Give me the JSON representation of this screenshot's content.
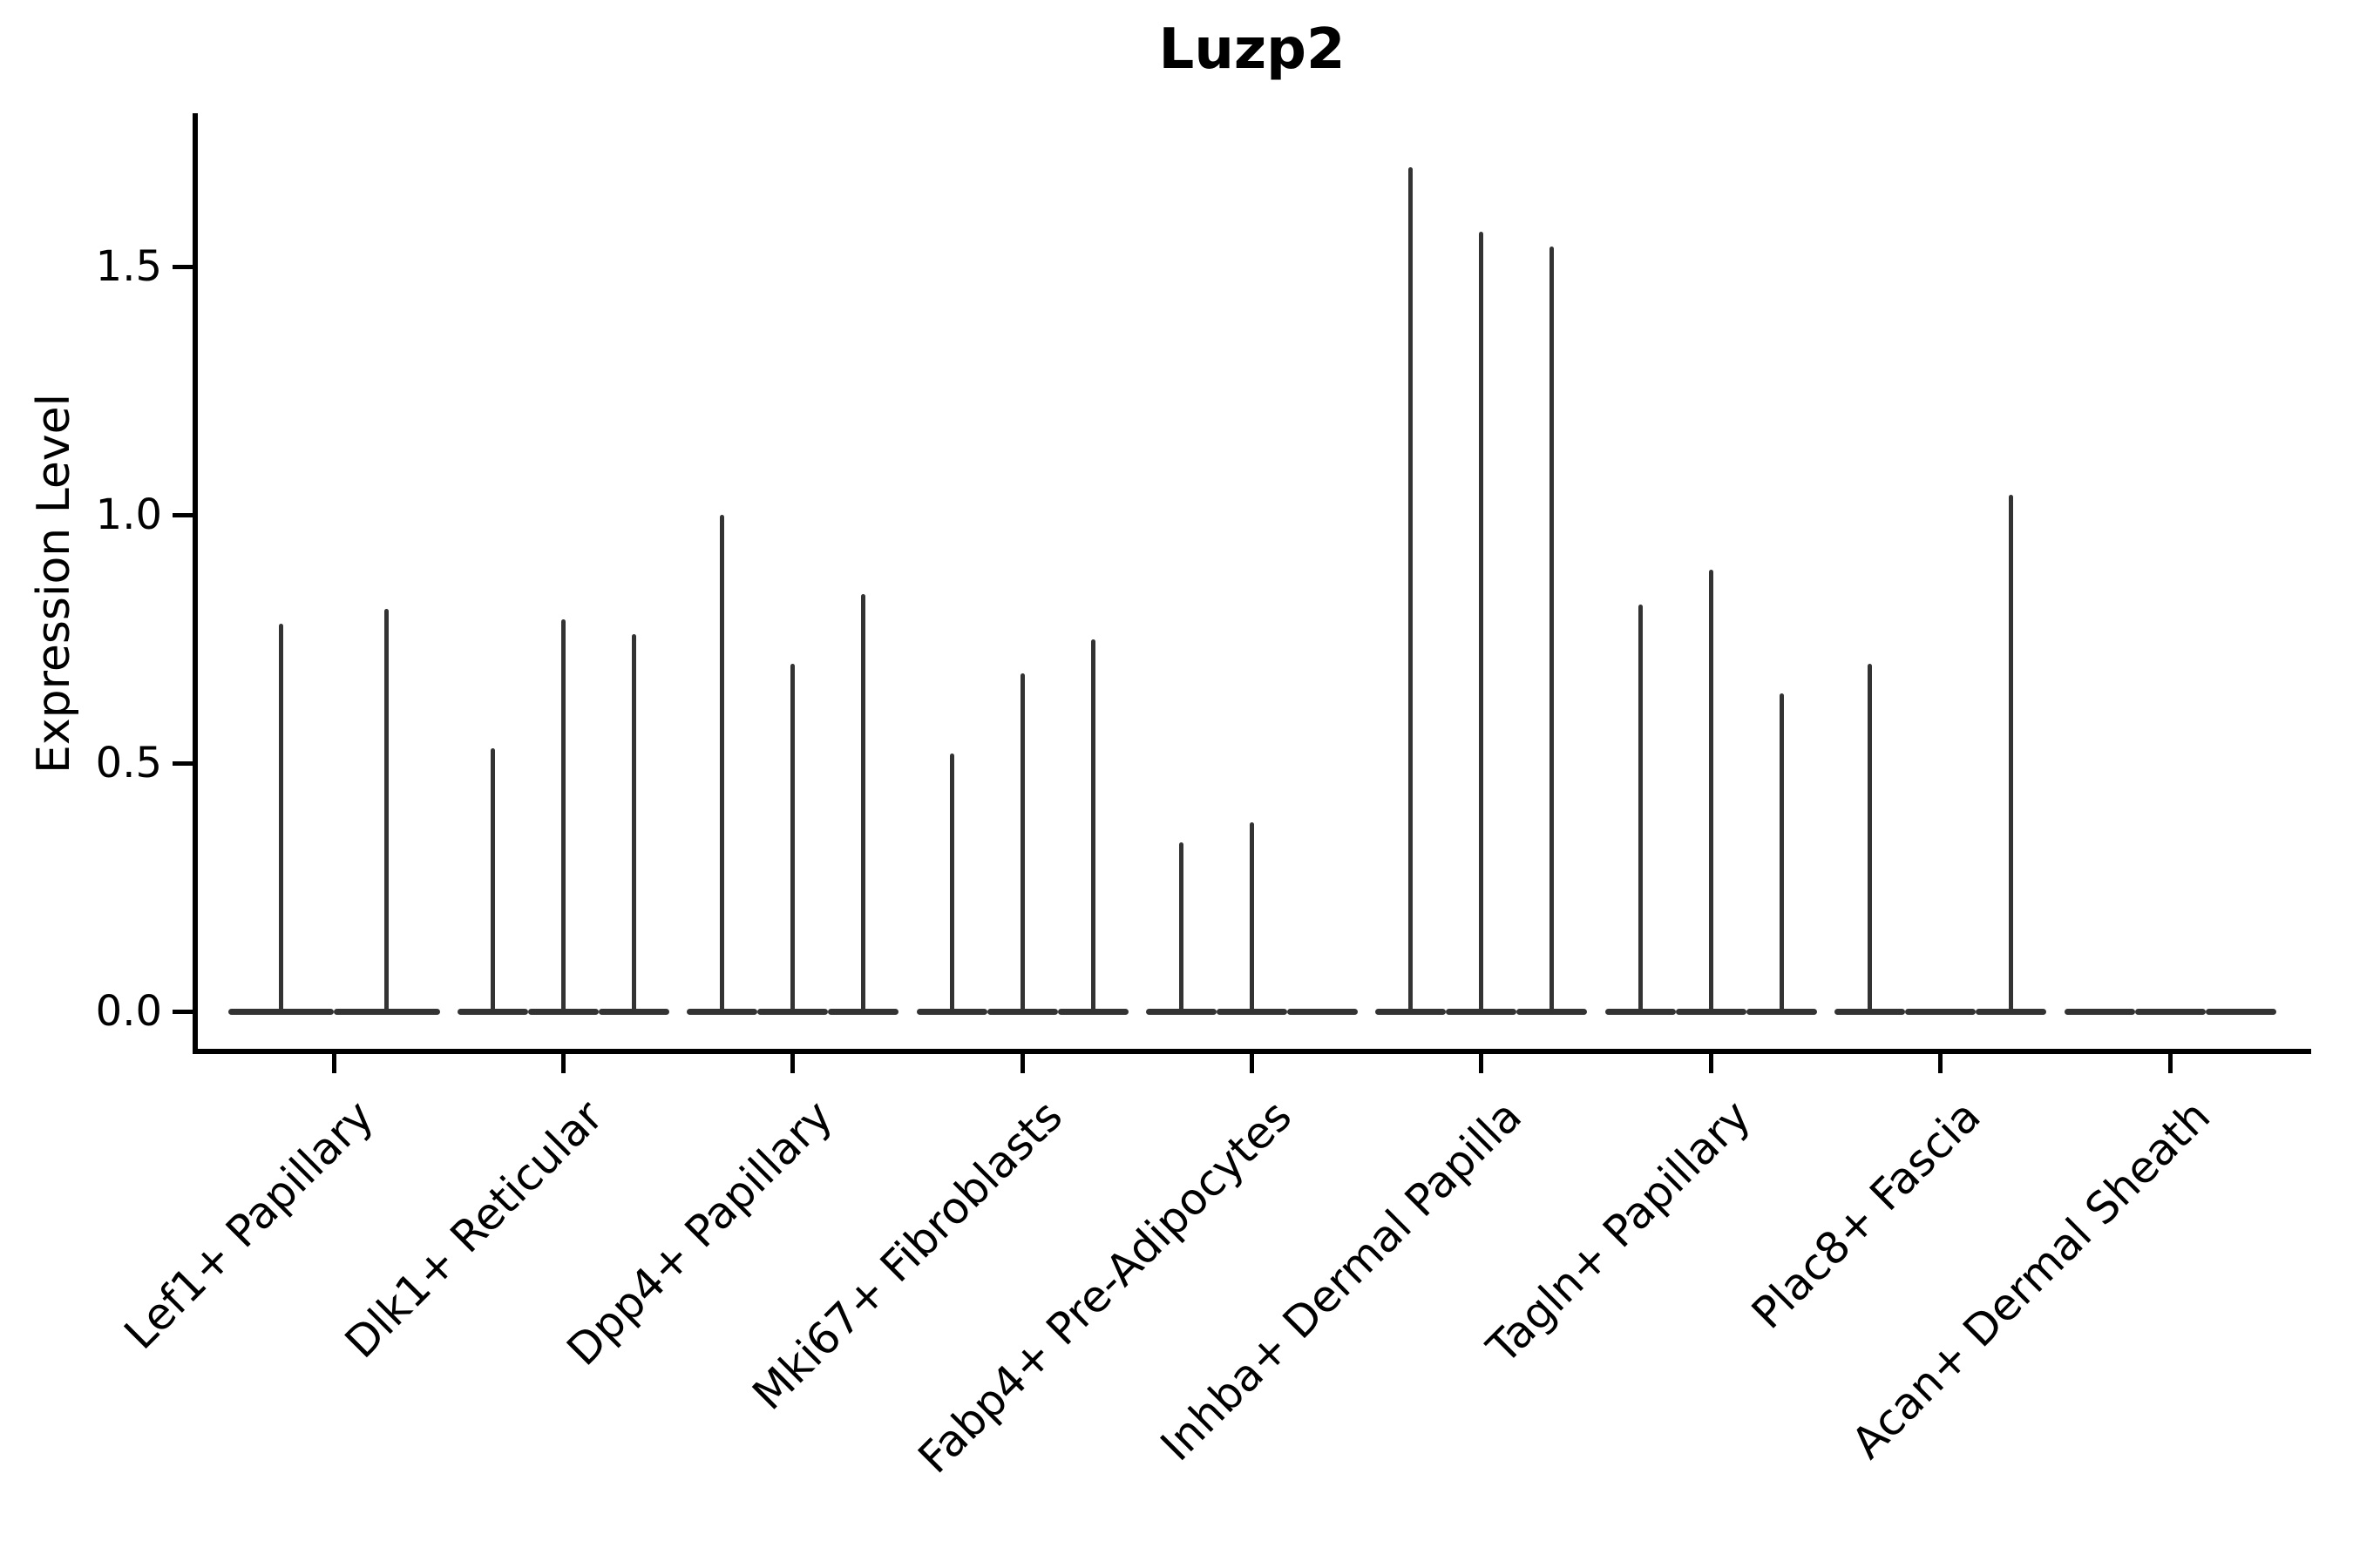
{
  "chart_data": {
    "type": "violin",
    "title": "Luzp2",
    "grid": false,
    "legend": false,
    "background": "#ffffff",
    "colors": {
      "axis": "#000000",
      "text": "#000000",
      "violin": "#333333"
    },
    "y_axis": {
      "label": "Expression Level",
      "ylim": [
        -0.09,
        1.81
      ],
      "ticks": [
        {
          "value": 0.0,
          "label": "0.0"
        },
        {
          "value": 0.5,
          "label": "0.5"
        },
        {
          "value": 1.0,
          "label": "1.0"
        },
        {
          "value": 1.5,
          "label": "1.5"
        }
      ]
    },
    "x_axis": {
      "tick_rotation_degrees": 45,
      "categories": [
        "Lef1+ Papillary",
        "Dlk1+ Reticular",
        "Dpp4+ Papillary",
        "Mki67+ Fibroblasts",
        "Fabp4+ Pre-Adipocytes",
        "Inhba+ Dermal Papilla",
        "Tagln+ Papillary",
        "Plac8+ Fascia",
        "Acan+ Dermal Sheath"
      ]
    },
    "groups": [
      {
        "label": "Lef1+ Papillary",
        "violin_max": [
          0.78,
          0.81
        ]
      },
      {
        "label": "Dlk1+ Reticular",
        "violin_max": [
          0.53,
          0.79,
          0.76
        ]
      },
      {
        "label": "Dpp4+ Papillary",
        "violin_max": [
          1.0,
          0.7,
          0.84
        ]
      },
      {
        "label": "Mki67+ Fibroblasts",
        "violin_max": [
          0.52,
          0.68,
          0.75
        ]
      },
      {
        "label": "Fabp4+ Pre-Adipocytes",
        "violin_max": [
          0.34,
          0.38,
          0
        ]
      },
      {
        "label": "Inhba+ Dermal Papilla",
        "violin_max": [
          1.7,
          1.57,
          1.54
        ]
      },
      {
        "label": "Tagln+ Papillary",
        "violin_max": [
          0.82,
          0.89,
          0.64
        ]
      },
      {
        "label": "Plac8+ Fascia",
        "violin_max": [
          0.7,
          0,
          1.04
        ]
      },
      {
        "label": "Acan+ Dermal Sheath",
        "violin_max": [
          0,
          0,
          0
        ]
      }
    ]
  }
}
